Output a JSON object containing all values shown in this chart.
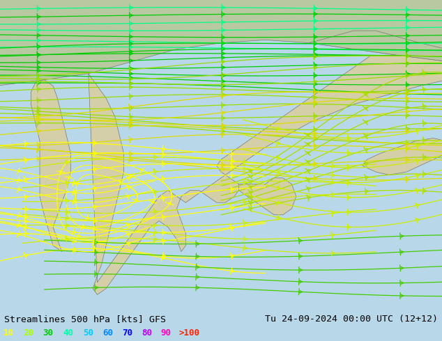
{
  "title_left": "Streamlines 500 hPa [kts] GFS",
  "title_right": "Tu 24-09-2024 00:00 UTC (12+12)",
  "legend_labels": [
    "10",
    "20",
    "30",
    "40",
    "50",
    "60",
    "70",
    "80",
    "90",
    ">100"
  ],
  "legend_colors": [
    "#ffff00",
    "#aaff00",
    "#00cc00",
    "#00ffaa",
    "#00ccff",
    "#0088ff",
    "#0000ff",
    "#bb00ff",
    "#ff00bb",
    "#ff2200"
  ],
  "ocean_color": "#b8d8ea",
  "land_color": "#d4cfa8",
  "land_green": "#b8c8a0",
  "border_color": "#777777",
  "text_color": "#000000",
  "font_size": 10,
  "fig_width": 6.34,
  "fig_height": 4.9,
  "dpi": 100,
  "speed_colors": {
    "10": "#ffff00",
    "20": "#aaff00",
    "30": "#55cc00",
    "40": "#00dd44",
    "50": "#00ccaa",
    "60": "#00aaff",
    "70": "#00ff00",
    "80": "#00cc00",
    "90": "#ff00bb",
    "100": "#ff2200"
  }
}
